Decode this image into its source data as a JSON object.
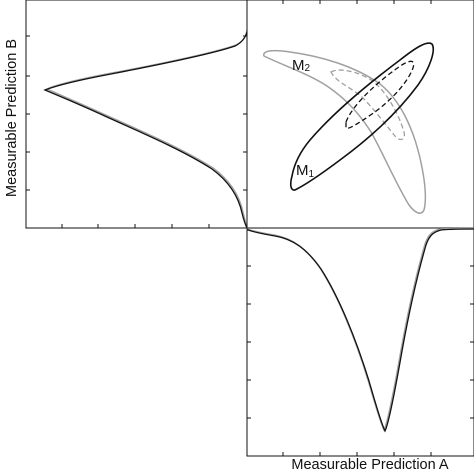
{
  "figure": {
    "x_axis_label": "Measurable Prediction A",
    "y_axis_label": "Measurable Prediction B"
  },
  "models": [
    {
      "id": "M1",
      "letter": "M",
      "subscript": "1",
      "color": "#111111"
    },
    {
      "id": "M2",
      "letter": "M",
      "subscript": "2",
      "color": "#a0a0a0"
    }
  ],
  "colors": {
    "frame": "#111111",
    "model_1_contour": "#111111",
    "model_2_contour": "#a0a0a0",
    "inner_contour": "#888888"
  }
}
